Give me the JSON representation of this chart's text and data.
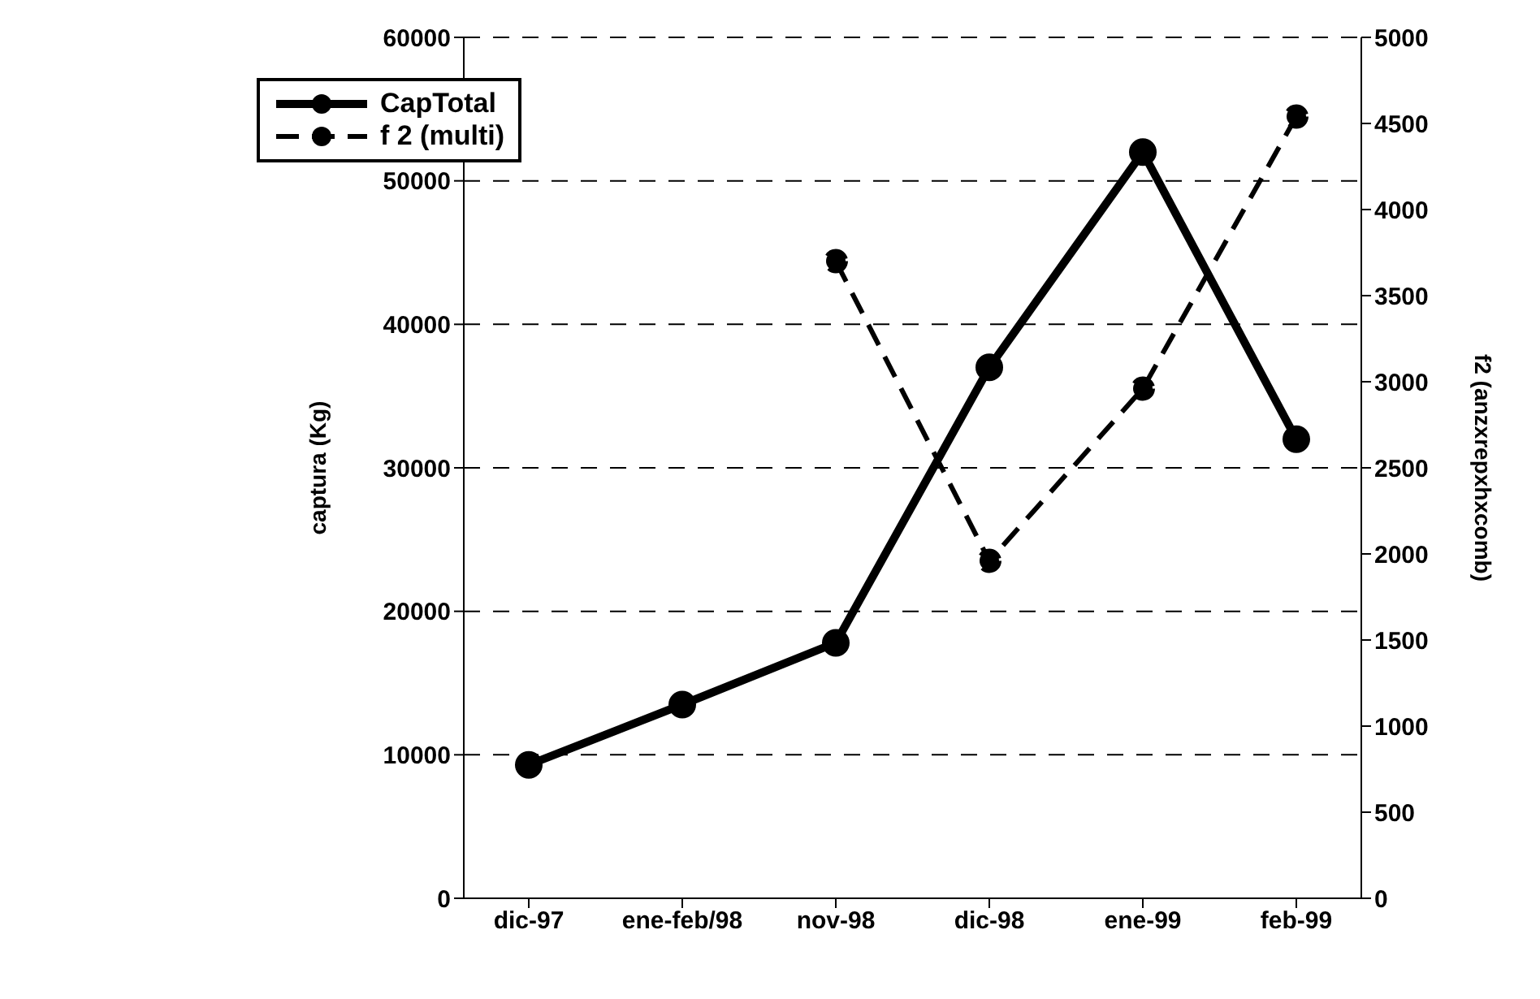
{
  "chart_data": {
    "type": "line",
    "categories": [
      "dic-97",
      "ene-feb/98",
      "nov-98",
      "dic-98",
      "ene-99",
      "feb-99"
    ],
    "ylabel": "captura (Kg)",
    "y2label": "f2 (anzxrepxhxcomb)",
    "series": [
      {
        "name": "CapTotal",
        "color": "#000000",
        "values": [
          9300,
          13500,
          17800,
          37000,
          52000,
          32000
        ],
        "line_style": "solid",
        "marker": "circle"
      },
      {
        "name": "f 2 (multi)",
        "color": "#000000",
        "values": [
          null,
          null,
          3700,
          1960,
          2960,
          4540
        ],
        "axis": "y2",
        "line_style": "dashed",
        "marker": "circle"
      }
    ],
    "ylim": [
      0,
      60000
    ],
    "yticks": [
      0,
      10000,
      20000,
      30000,
      40000,
      50000,
      60000
    ],
    "y2lim": [
      0,
      5000
    ],
    "y2ticks": [
      0,
      500,
      1000,
      1500,
      2000,
      2500,
      3000,
      3500,
      4000,
      4500,
      5000
    ],
    "grid": "y",
    "legend": "top left"
  }
}
